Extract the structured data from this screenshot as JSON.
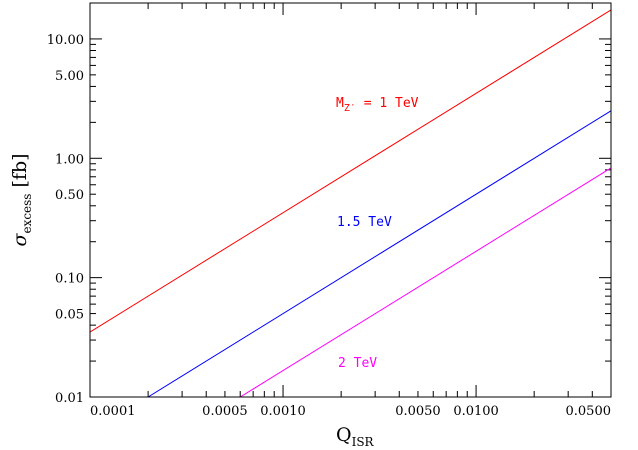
{
  "chart_data": {
    "type": "line",
    "xscale": "log",
    "yscale": "log",
    "xlim": [
      0.0001,
      0.05
    ],
    "ylim": [
      0.01,
      20
    ],
    "xlabel": {
      "main": "Q",
      "sub": "ISR"
    },
    "ylabel": {
      "symbol": "σ",
      "sub": "excess",
      "unit": "[fb]"
    },
    "x_ticks": [
      {
        "value": 0.0001,
        "label": "0.0001"
      },
      {
        "value": 0.0005,
        "label": "0.0005"
      },
      {
        "value": 0.001,
        "label": "0.0010"
      },
      {
        "value": 0.005,
        "label": "0.0050"
      },
      {
        "value": 0.01,
        "label": "0.0100"
      },
      {
        "value": 0.05,
        "label": "0.0500"
      }
    ],
    "y_ticks": [
      {
        "value": 0.01,
        "label": "0.01"
      },
      {
        "value": 0.05,
        "label": "0.05"
      },
      {
        "value": 0.1,
        "label": "0.10"
      },
      {
        "value": 0.5,
        "label": "0.50"
      },
      {
        "value": 1,
        "label": "1.00"
      },
      {
        "value": 5,
        "label": "5.00"
      },
      {
        "value": 10,
        "label": "10.00"
      }
    ],
    "grid": false,
    "series": [
      {
        "label_parts": {
          "pre": "M",
          "sub": "Z′",
          "post": " = 1 TeV"
        },
        "color": "#ff0000",
        "x": [
          0.0001,
          0.05
        ],
        "y": [
          0.035,
          17.5
        ]
      },
      {
        "label_parts": {
          "pre": "1.5 TeV"
        },
        "color": "#0000ff",
        "x": [
          0.0002,
          0.05
        ],
        "y": [
          0.01,
          2.5
        ]
      },
      {
        "label_parts": {
          "pre": "2 TeV"
        },
        "color": "#ff00ff",
        "x": [
          0.0006,
          0.05
        ],
        "y": [
          0.01,
          0.83
        ]
      }
    ]
  }
}
